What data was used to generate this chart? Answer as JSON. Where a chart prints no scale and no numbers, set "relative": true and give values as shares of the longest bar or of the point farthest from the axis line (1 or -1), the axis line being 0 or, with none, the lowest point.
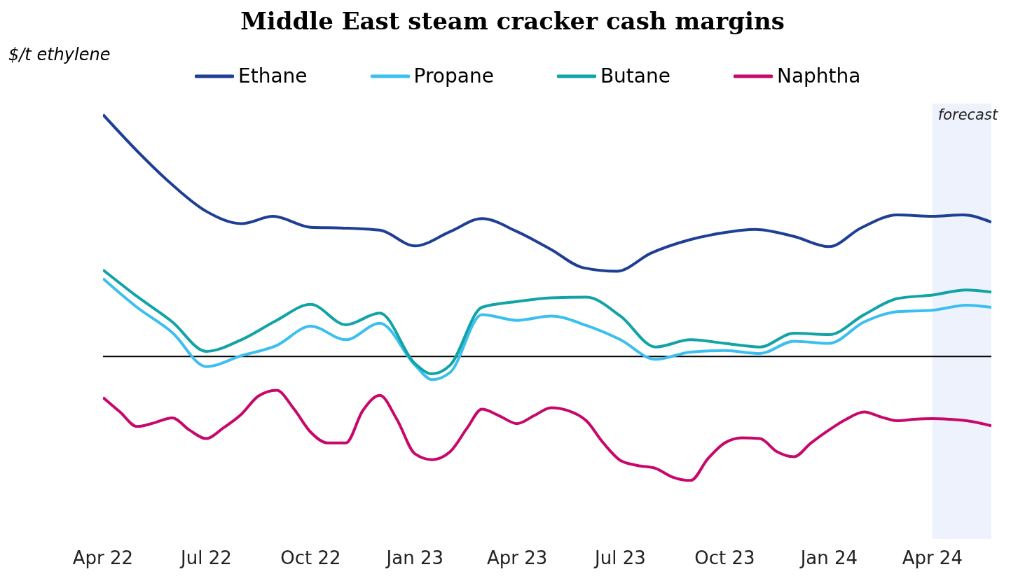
{
  "chart_data": {
    "type": "line",
    "title": "Middle East steam cracker cash margins",
    "ylabel": "$/t ethylene",
    "relative": true,
    "legend": "top",
    "grid": false,
    "marker": "none",
    "line_style": "solid",
    "xlim": [
      "2022-04-01",
      "2024-05-23"
    ],
    "xticks": [
      {
        "value": "2022-04-01",
        "label": "Apr 22"
      },
      {
        "value": "2022-07-01",
        "label": "Jul 22"
      },
      {
        "value": "2022-10-01",
        "label": "Oct 22"
      },
      {
        "value": "2023-01-01",
        "label": "Jan 23"
      },
      {
        "value": "2023-04-01",
        "label": "Apr 23"
      },
      {
        "value": "2023-07-01",
        "label": "Jul 23"
      },
      {
        "value": "2023-10-01",
        "label": "Oct 23"
      },
      {
        "value": "2024-01-01",
        "label": "Jan 24"
      },
      {
        "value": "2024-04-01",
        "label": "Apr 24"
      }
    ],
    "bands": [
      {
        "axis": "x",
        "from": "2024-04-01",
        "to": "2024-05-23",
        "label": "forecast",
        "color": "#eef2fc"
      }
    ],
    "series": [
      {
        "name": "Ethane",
        "color": "#1f3f94",
        "x": [
          "2022-04-01",
          "2022-05-02",
          "2022-06-01",
          "2022-07-01",
          "2022-08-01",
          "2022-08-29",
          "2022-10-01",
          "2022-10-28",
          "2022-12-01",
          "2023-01-01",
          "2023-02-01",
          "2023-03-01",
          "2023-04-01",
          "2023-05-01",
          "2023-05-29",
          "2023-06-28",
          "2023-07-28",
          "2023-08-30",
          "2023-09-28",
          "2023-10-28",
          "2023-12-01",
          "2024-01-01",
          "2024-01-29",
          "2024-03-01",
          "2024-04-01",
          "2024-04-28",
          "2024-05-23"
        ],
        "values": [
          1.0,
          0.845,
          0.71,
          0.6,
          0.549,
          0.579,
          0.534,
          0.531,
          0.522,
          0.457,
          0.516,
          0.57,
          0.516,
          0.442,
          0.367,
          0.352,
          0.427,
          0.481,
          0.51,
          0.525,
          0.496,
          0.454,
          0.531,
          0.585,
          0.579,
          0.585,
          0.555
        ]
      },
      {
        "name": "Propane",
        "color": "#3bbfef",
        "x": [
          "2022-04-01",
          "2022-05-01",
          "2022-06-01",
          "2022-07-01",
          "2022-08-01",
          "2022-09-01",
          "2022-10-01",
          "2022-11-01",
          "2022-12-01",
          "2023-01-01",
          "2023-01-16",
          "2023-02-01",
          "2023-03-01",
          "2023-04-01",
          "2023-05-01",
          "2023-06-01",
          "2023-07-01",
          "2023-08-01",
          "2023-09-01",
          "2023-10-01",
          "2023-11-01",
          "2023-12-01",
          "2024-01-01",
          "2024-02-01",
          "2024-03-01",
          "2024-04-01",
          "2024-05-01",
          "2024-05-23"
        ],
        "values": [
          0.322,
          0.203,
          0.099,
          -0.042,
          0.003,
          0.045,
          0.125,
          0.069,
          0.137,
          -0.036,
          -0.096,
          -0.066,
          0.173,
          0.149,
          0.167,
          0.128,
          0.069,
          -0.012,
          0.018,
          0.024,
          0.012,
          0.063,
          0.054,
          0.143,
          0.185,
          0.191,
          0.212,
          0.203
        ]
      },
      {
        "name": "Butane",
        "color": "#11a3a6",
        "x": [
          "2022-04-01",
          "2022-05-01",
          "2022-06-01",
          "2022-07-01",
          "2022-08-01",
          "2022-09-01",
          "2022-10-01",
          "2022-11-01",
          "2022-12-01",
          "2023-01-01",
          "2023-01-16",
          "2023-02-01",
          "2023-03-01",
          "2023-04-01",
          "2023-05-01",
          "2023-06-01",
          "2023-07-01",
          "2023-08-01",
          "2023-09-01",
          "2023-10-01",
          "2023-11-01",
          "2023-12-01",
          "2024-01-01",
          "2024-02-01",
          "2024-03-01",
          "2024-04-01",
          "2024-05-01",
          "2024-05-23"
        ],
        "values": [
          0.358,
          0.248,
          0.143,
          0.021,
          0.069,
          0.149,
          0.215,
          0.131,
          0.179,
          -0.03,
          -0.072,
          -0.036,
          0.203,
          0.227,
          0.242,
          0.245,
          0.167,
          0.039,
          0.069,
          0.054,
          0.039,
          0.096,
          0.09,
          0.173,
          0.239,
          0.254,
          0.275,
          0.266
        ]
      },
      {
        "name": "Naphtha",
        "color": "#c8076b",
        "x": [
          "2022-04-01",
          "2022-04-16",
          "2022-05-01",
          "2022-05-16",
          "2022-06-01",
          "2022-06-16",
          "2022-07-01",
          "2022-07-16",
          "2022-08-01",
          "2022-08-16",
          "2022-09-01",
          "2022-09-16",
          "2022-10-01",
          "2022-10-16",
          "2022-11-01",
          "2022-11-16",
          "2022-12-01",
          "2022-12-16",
          "2023-01-01",
          "2023-01-16",
          "2023-02-01",
          "2023-02-16",
          "2023-03-01",
          "2023-03-16",
          "2023-04-01",
          "2023-04-16",
          "2023-05-01",
          "2023-05-16",
          "2023-06-01",
          "2023-06-16",
          "2023-07-01",
          "2023-07-16",
          "2023-08-01",
          "2023-08-16",
          "2023-09-01",
          "2023-09-16",
          "2023-10-01",
          "2023-10-16",
          "2023-11-01",
          "2023-11-16",
          "2023-12-01",
          "2023-12-16",
          "2024-01-01",
          "2024-01-16",
          "2024-02-01",
          "2024-02-16",
          "2024-03-01",
          "2024-03-16",
          "2024-04-01",
          "2024-04-16",
          "2024-05-01",
          "2024-05-23"
        ],
        "values": [
          -0.17,
          -0.23,
          -0.29,
          -0.275,
          -0.254,
          -0.304,
          -0.34,
          -0.296,
          -0.239,
          -0.164,
          -0.14,
          -0.215,
          -0.313,
          -0.358,
          -0.358,
          -0.224,
          -0.161,
          -0.26,
          -0.403,
          -0.427,
          -0.394,
          -0.296,
          -0.218,
          -0.245,
          -0.278,
          -0.245,
          -0.212,
          -0.224,
          -0.266,
          -0.358,
          -0.43,
          -0.451,
          -0.463,
          -0.499,
          -0.513,
          -0.424,
          -0.358,
          -0.337,
          -0.34,
          -0.394,
          -0.415,
          -0.358,
          -0.304,
          -0.26,
          -0.23,
          -0.251,
          -0.266,
          -0.26,
          -0.257,
          -0.26,
          -0.266,
          -0.287
        ]
      }
    ]
  }
}
